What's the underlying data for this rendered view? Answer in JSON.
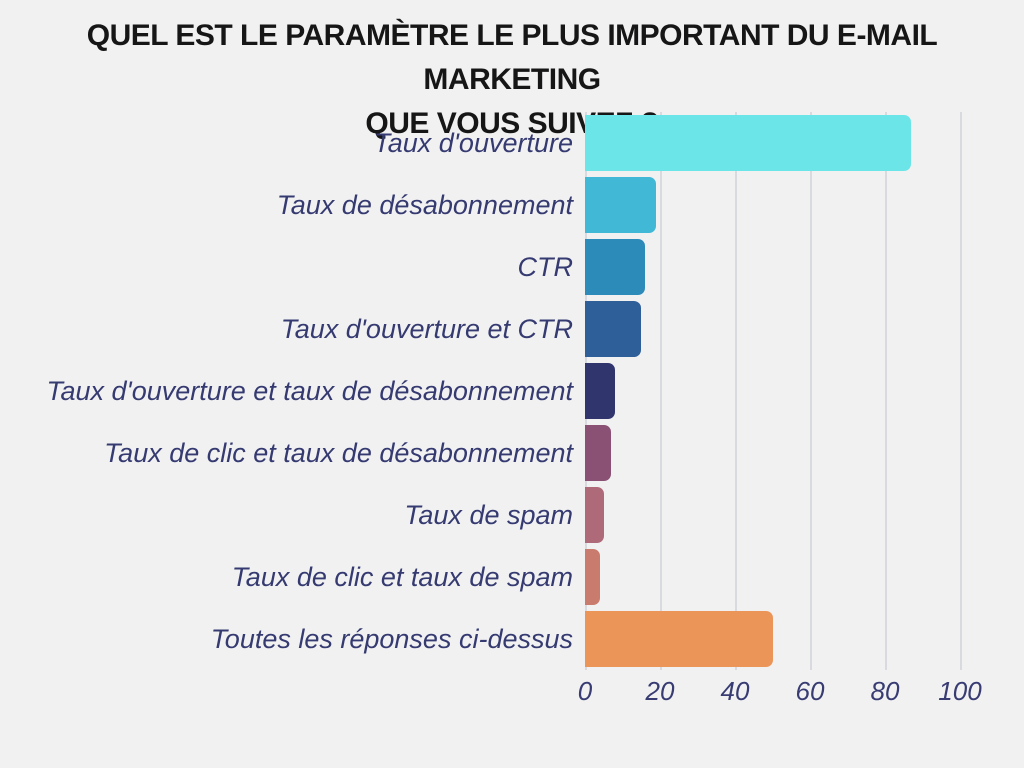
{
  "title": {
    "line1": "QUEL EST LE PARAMÈTRE LE PLUS IMPORTANT DU E-MAIL MARKETING",
    "line2": "QUE VOUS SUIVEZ ?"
  },
  "chart_data": {
    "type": "bar",
    "orientation": "horizontal",
    "title": "QUEL EST LE PARAMÈTRE LE PLUS IMPORTANT DU E-MAIL MARKETING QUE VOUS SUIVEZ ?",
    "categories": [
      "Taux d'ouverture",
      "Taux de désabonnement",
      "CTR",
      "Taux d'ouverture et CTR",
      "Taux d'ouverture et taux de désabonnement",
      "Taux de clic et taux de désabonnement",
      "Taux de spam",
      "Taux de clic et taux de spam",
      "Toutes les réponses ci-dessus"
    ],
    "values": [
      87,
      19,
      16,
      15,
      8,
      7,
      5,
      4,
      50
    ],
    "bar_colors": [
      "#6CE5E8",
      "#41B8D5",
      "#2D8BBA",
      "#2F5F98",
      "#31356E",
      "#8A5175",
      "#AE6A79",
      "#C97B6D",
      "#EC9559"
    ],
    "xlabel": "",
    "ylabel": "",
    "xlim": [
      0,
      100
    ],
    "x_ticks": [
      0,
      20,
      40,
      60,
      80,
      100
    ],
    "grid": "vertical",
    "legend": "none",
    "colors": {
      "background": "#F1F1F2",
      "gridline": "#D9D9E0",
      "category_label": "#353A70",
      "tick_label": "#383C72",
      "title_text": "#161616"
    }
  }
}
